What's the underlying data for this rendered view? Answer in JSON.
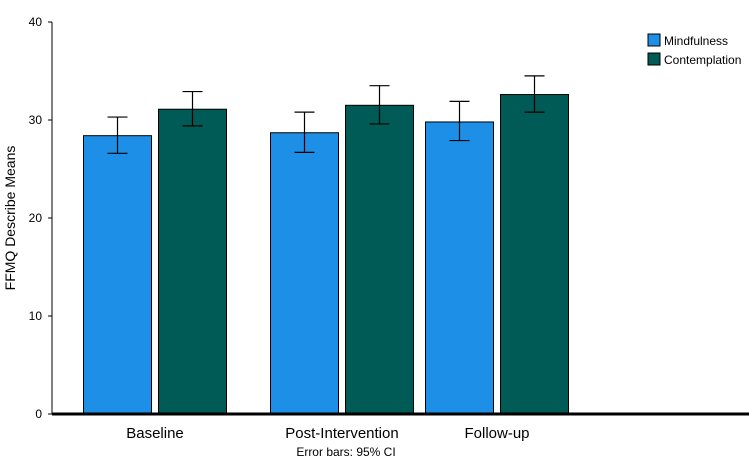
{
  "chart_data": {
    "type": "bar",
    "categories": [
      "Baseline",
      "Post-Intervention",
      "Follow-up"
    ],
    "series": [
      {
        "name": "Mindfulness",
        "values": [
          28.4,
          28.7,
          29.8
        ],
        "ci_low": [
          26.6,
          26.7,
          27.9
        ],
        "ci_high": [
          30.3,
          30.8,
          31.9
        ],
        "color": "#1e8fe6"
      },
      {
        "name": "Contemplation",
        "values": [
          31.1,
          31.5,
          32.6
        ],
        "ci_low": [
          29.4,
          29.6,
          30.8
        ],
        "ci_high": [
          32.9,
          33.5,
          34.5
        ],
        "color": "#005a55"
      }
    ],
    "xlabel": "",
    "ylabel": "FFMQ Describe Means",
    "ylim": [
      0,
      40
    ],
    "yticks": [
      0,
      10,
      20,
      30,
      40
    ],
    "note": "Error bars: 95% CI",
    "legend_position": "top-right",
    "grid": false
  }
}
